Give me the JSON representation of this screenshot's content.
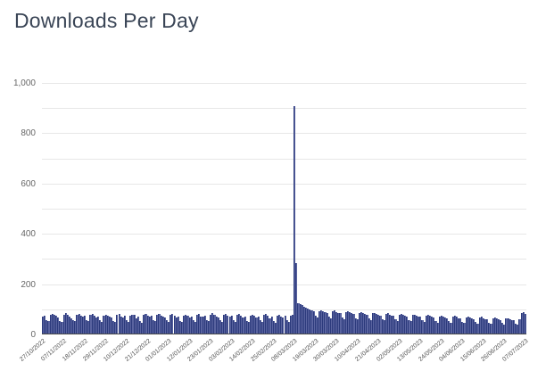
{
  "page": {
    "title": "Downloads Per Day"
  },
  "colors": {
    "title": "#3a4556",
    "bar_fill": "#5a64a0",
    "bar_border": "#2c3a7c",
    "gridline": "#e7e7e7",
    "axis_line": "#4b4b4b",
    "tick_label": "#666666"
  },
  "chart_data": {
    "type": "bar",
    "title": "Downloads Per Day",
    "xlabel": "",
    "ylabel": "",
    "ylim": [
      0,
      1000
    ],
    "grid": "horizontal, every 100, light gray",
    "legend": "none",
    "start_date": "27/10/2022",
    "end_date": "07/07/2023",
    "x_tick_interval_days": 11,
    "x_tick_labels": [
      "27/10/2022",
      "07/11/2022",
      "18/11/2022",
      "29/11/2022",
      "10/12/2022",
      "21/12/2022",
      "01/01/2023",
      "12/01/2023",
      "23/01/2023",
      "03/02/2023",
      "14/02/2023",
      "25/02/2023",
      "08/03/2023",
      "19/03/2023",
      "30/03/2023",
      "10/04/2023",
      "21/04/2023",
      "02/05/2023",
      "13/05/2023",
      "24/05/2023",
      "04/06/2023",
      "15/06/2023",
      "26/06/2023",
      "07/07/2023"
    ],
    "y_tick_labels": [
      "1,000",
      "800",
      "600",
      "400",
      "200",
      "0"
    ],
    "y_tick_values": [
      1000,
      800,
      600,
      400,
      200,
      0
    ],
    "peak": {
      "date": "08/03/2023",
      "value": 903
    },
    "values": [
      68,
      72,
      55,
      49,
      74,
      78,
      73,
      70,
      65,
      51,
      47,
      76,
      80,
      74,
      69,
      62,
      53,
      50,
      73,
      77,
      72,
      66,
      71,
      54,
      48,
      75,
      79,
      70,
      64,
      69,
      52,
      46,
      72,
      76,
      71,
      67,
      63,
      50,
      45,
      74,
      78,
      69,
      65,
      70,
      53,
      47,
      71,
      75,
      73,
      62,
      68,
      51,
      44,
      73,
      77,
      70,
      66,
      71,
      54,
      48,
      75,
      79,
      72,
      68,
      64,
      52,
      46,
      74,
      78,
      71,
      65,
      69,
      51,
      45,
      72,
      76,
      70,
      63,
      67,
      53,
      47,
      73,
      77,
      69,
      67,
      72,
      55,
      49,
      76,
      80,
      73,
      69,
      65,
      52,
      46,
      75,
      79,
      72,
      66,
      70,
      53,
      47,
      74,
      78,
      71,
      64,
      68,
      51,
      45,
      72,
      76,
      70,
      65,
      69,
      52,
      46,
      73,
      77,
      70,
      62,
      67,
      50,
      44,
      71,
      75,
      68,
      64,
      70,
      53,
      47,
      72,
      76,
      903,
      281,
      122,
      117,
      112,
      108,
      104,
      100,
      96,
      92,
      88,
      70,
      64,
      90,
      94,
      89,
      85,
      82,
      66,
      60,
      87,
      91,
      86,
      83,
      80,
      64,
      58,
      85,
      88,
      84,
      80,
      78,
      62,
      56,
      82,
      86,
      81,
      78,
      75,
      60,
      54,
      80,
      83,
      79,
      75,
      72,
      58,
      52,
      77,
      81,
      76,
      72,
      70,
      56,
      50,
      75,
      78,
      74,
      70,
      68,
      54,
      48,
      73,
      76,
      72,
      68,
      66,
      52,
      46,
      70,
      74,
      70,
      66,
      64,
      50,
      44,
      68,
      72,
      68,
      64,
      62,
      48,
      43,
      66,
      70,
      66,
      62,
      60,
      46,
      41,
      64,
      68,
      64,
      60,
      58,
      45,
      40,
      63,
      66,
      62,
      58,
      56,
      43,
      38,
      61,
      64,
      60,
      56,
      54,
      42,
      37,
      59,
      62,
      58,
      55,
      52,
      40,
      36,
      58,
      80,
      84,
      78
    ]
  }
}
